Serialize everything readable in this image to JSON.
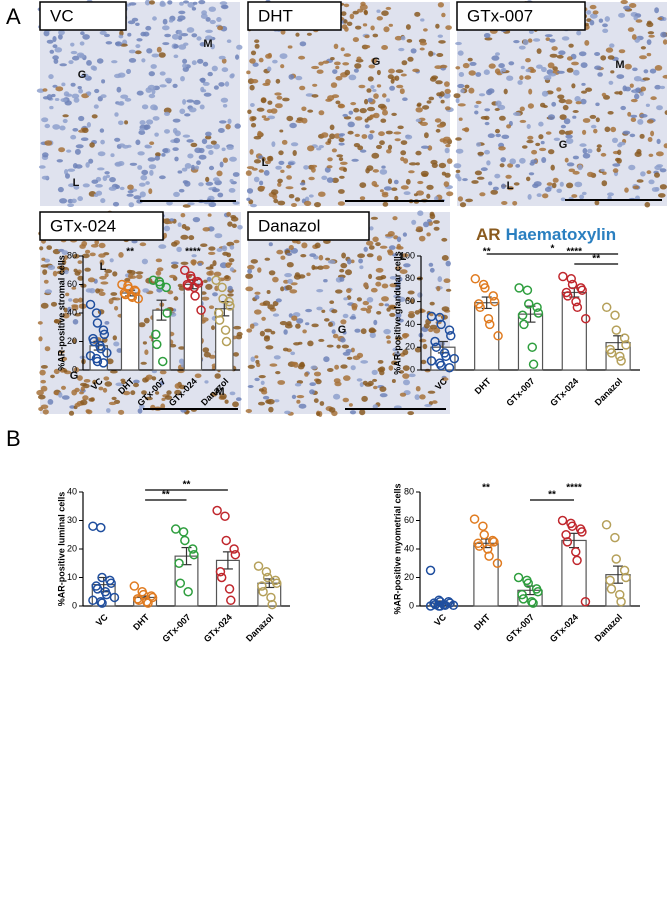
{
  "panel_labels": [
    "A",
    "B"
  ],
  "micrographs": [
    {
      "label": "VC",
      "regions": [
        "M",
        "G",
        "L"
      ]
    },
    {
      "label": "DHT",
      "regions": [
        "G",
        "L"
      ]
    },
    {
      "label": "GTx-007",
      "regions": [
        "M",
        "G",
        "L"
      ]
    },
    {
      "label": "GTx-024",
      "regions": [
        "L",
        "G",
        "M"
      ]
    },
    {
      "label": "Danazol",
      "regions": [
        "L",
        "G"
      ]
    }
  ],
  "stain_legend": {
    "ar": "AR",
    "haematoxylin": "Haematoxylin"
  },
  "chart_data": [
    {
      "type": "bar",
      "ylabel": "%AR-positive stromal cells",
      "categories": [
        "VC",
        "DHT",
        "GTx-007",
        "GTx-024",
        "Danazol"
      ],
      "colors": [
        "#1f4e9e",
        "#e07b20",
        "#2e9e3e",
        "#c0272d",
        "#b5a05a"
      ],
      "values": [
        17,
        54,
        42,
        60,
        43
      ],
      "errors": [
        3,
        2,
        7,
        3,
        5
      ],
      "points": [
        [
          46,
          40,
          33,
          28,
          25,
          22,
          20,
          17,
          15,
          12,
          10,
          8,
          6,
          5
        ],
        [
          60,
          59,
          57,
          56,
          55,
          54,
          53,
          52,
          51,
          50
        ],
        [
          63,
          62,
          60,
          58,
          40,
          25,
          18,
          6
        ],
        [
          70,
          66,
          64,
          62,
          61,
          60,
          59,
          58,
          52,
          42
        ],
        [
          63,
          58,
          50,
          48,
          45,
          40,
          35,
          28,
          20
        ]
      ],
      "stars": [
        null,
        "**",
        null,
        "****",
        null
      ],
      "brackets": [],
      "ylim": [
        0,
        80
      ],
      "yticks": [
        0,
        20,
        40,
        60,
        80
      ]
    },
    {
      "type": "bar",
      "ylabel": "%AR-positive glandular cells",
      "categories": [
        "VC",
        "DHT",
        "GTx-007",
        "GTx-024",
        "Danazol"
      ],
      "colors": [
        "#1f4e9e",
        "#e07b20",
        "#2e9e3e",
        "#c0272d",
        "#b5a05a"
      ],
      "values": [
        20,
        59,
        49,
        68,
        24
      ],
      "errors": [
        5,
        5,
        7,
        4,
        6
      ],
      "points": [
        [
          47,
          46,
          40,
          35,
          30,
          25,
          20,
          15,
          12,
          10,
          8,
          6,
          4,
          2
        ],
        [
          80,
          75,
          72,
          65,
          60,
          58,
          55,
          45,
          40,
          30
        ],
        [
          72,
          70,
          58,
          55,
          50,
          48,
          40,
          20,
          5
        ],
        [
          82,
          80,
          75,
          72,
          70,
          68,
          65,
          60,
          55,
          45
        ],
        [
          55,
          48,
          35,
          28,
          22,
          18,
          15,
          12,
          8
        ]
      ],
      "stars": [
        null,
        "**",
        null,
        "****",
        null
      ],
      "brackets": [
        {
          "from": "DHT",
          "to": "Danazol",
          "text": "*"
        },
        {
          "from": "GTx-024",
          "to": "Danazol",
          "text": "**"
        }
      ],
      "ylim": [
        0,
        100
      ],
      "yticks": [
        0,
        20,
        40,
        60,
        80,
        100
      ]
    },
    {
      "type": "bar",
      "ylabel": "%AR-positive luminal cells",
      "categories": [
        "VC",
        "DHT",
        "GTx-007",
        "GTx-024",
        "Danazol"
      ],
      "colors": [
        "#1f4e9e",
        "#e07b20",
        "#2e9e3e",
        "#c0272d",
        "#b5a05a"
      ],
      "values": [
        7.5,
        3,
        17.5,
        16,
        8
      ],
      "errors": [
        2.5,
        0.5,
        3,
        3,
        1.5
      ],
      "points": [
        [
          28,
          27.5,
          10,
          9,
          8,
          7,
          6,
          5,
          4,
          3,
          2,
          1.5,
          1
        ],
        [
          7,
          5,
          4,
          3.5,
          3,
          2.5,
          2,
          1.5,
          1
        ],
        [
          27,
          26,
          23,
          20,
          18,
          15,
          8,
          5
        ],
        [
          33.5,
          31.5,
          23,
          20,
          18,
          12,
          10,
          6,
          2
        ],
        [
          14,
          12,
          10,
          9,
          8,
          7,
          5,
          3,
          0.5
        ]
      ],
      "stars": [
        null,
        null,
        null,
        null,
        null
      ],
      "brackets": [
        {
          "from": "DHT",
          "to": "GTx-024",
          "text": "**"
        },
        {
          "from": "DHT",
          "to": "GTx-007",
          "text": "**"
        }
      ],
      "ylim": [
        0,
        40
      ],
      "yticks": [
        0,
        10,
        20,
        30,
        40
      ]
    },
    {
      "type": "bar",
      "ylabel": "%AR-positive myometrial cells",
      "categories": [
        "VC",
        "DHT",
        "GTx-007",
        "GTx-024",
        "Danazol"
      ],
      "colors": [
        "#1f4e9e",
        "#e07b20",
        "#2e9e3e",
        "#c0272d",
        "#b5a05a"
      ],
      "values": [
        2,
        44,
        11,
        46,
        22
      ],
      "errors": [
        1.5,
        3,
        3,
        5,
        6
      ],
      "points": [
        [
          25,
          4,
          3,
          3,
          2,
          2,
          1,
          1,
          0.5,
          0.5,
          0,
          0,
          0
        ],
        [
          61,
          56,
          50,
          46,
          45,
          44,
          42,
          40,
          35,
          30
        ],
        [
          20,
          18,
          16,
          12,
          10,
          8,
          5,
          3,
          2
        ],
        [
          60,
          58,
          56,
          54,
          52,
          50,
          45,
          38,
          32,
          3
        ],
        [
          57,
          48,
          33,
          25,
          20,
          18,
          12,
          8,
          3
        ]
      ],
      "stars": [
        null,
        "**",
        null,
        "****",
        null
      ],
      "brackets": [
        {
          "from": "GTx-007",
          "to": "GTx-024",
          "text": "**"
        }
      ],
      "ylim": [
        0,
        80
      ],
      "yticks": [
        0,
        20,
        40,
        60,
        80
      ]
    }
  ]
}
